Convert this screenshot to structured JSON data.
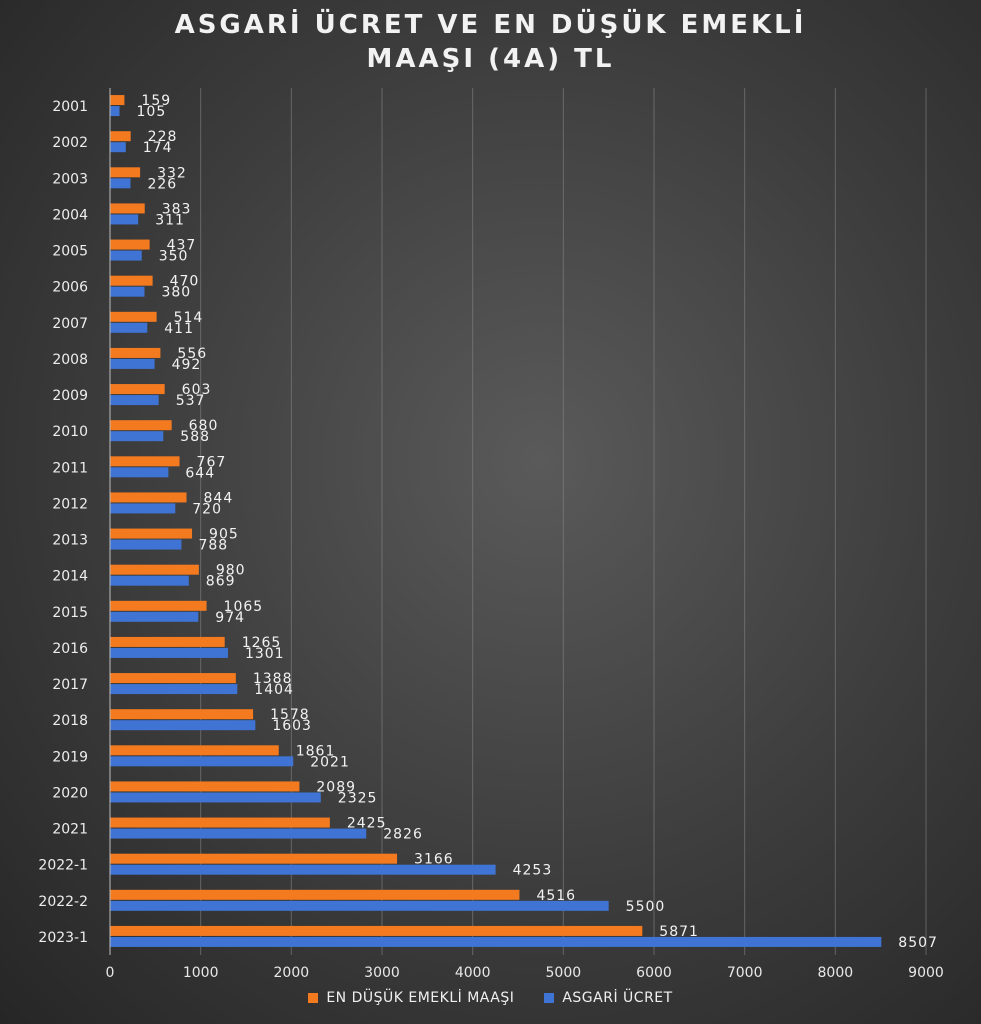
{
  "chart_data": {
    "type": "bar",
    "orientation": "horizontal",
    "title_lines": [
      "ASGARİ ÜCRET VE EN DÜŞÜK EMEKLİ",
      "MAAŞI (4A) TL"
    ],
    "categories": [
      "2001",
      "2002",
      "2003",
      "2004",
      "2005",
      "2006",
      "2007",
      "2008",
      "2009",
      "2010",
      "2011",
      "2012",
      "2013",
      "2014",
      "2015",
      "2016",
      "2017",
      "2018",
      "2019",
      "2020",
      "2021",
      "2022-1",
      "2022-2",
      "2023-1"
    ],
    "series": [
      {
        "name": "EN DÜŞÜK EMEKLİ MAAŞI",
        "color": "#f47a20",
        "values": [
          159,
          228,
          332,
          383,
          437,
          470,
          514,
          556,
          603,
          680,
          767,
          844,
          905,
          980,
          1065,
          1265,
          1388,
          1578,
          1861,
          2089,
          2425,
          3166,
          4516,
          5871
        ]
      },
      {
        "name": "ASGARİ ÜCRET",
        "color": "#3f74d4",
        "values": [
          105,
          174,
          226,
          311,
          350,
          380,
          411,
          492,
          537,
          588,
          644,
          720,
          788,
          869,
          974,
          1301,
          1404,
          1603,
          2021,
          2325,
          2826,
          4253,
          5500,
          8507
        ]
      }
    ],
    "xlim": [
      0,
      9000
    ],
    "xticks": [
      0,
      1000,
      2000,
      3000,
      4000,
      5000,
      6000,
      7000,
      8000,
      9000
    ],
    "grid": true,
    "legend_position": "bottom"
  }
}
